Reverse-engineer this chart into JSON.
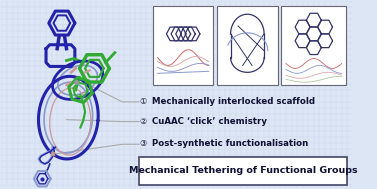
{
  "bg_color": "#dde6f5",
  "grid_color": "#c5d2e8",
  "title_box_text": "Mechanical Tethering of Functional Groups",
  "items": [
    {
      "num": "①",
      "text": "Mechanically interlocked scaffold"
    },
    {
      "num": "②",
      "text": "CuAAC ‘click’ chemistry"
    },
    {
      "num": "③",
      "text": "Post-synthetic functionalisation"
    }
  ],
  "title_fontsize": 6.8,
  "item_fontsize": 6.2,
  "num_fontsize": 5.8,
  "text_color": "#111133",
  "box_edge_color": "#444466",
  "box_bg": "#ffffff",
  "thumb_bg": "#ffffff",
  "thumbnail_edge": "#666677",
  "blue": "#2222aa",
  "green": "#33aa33",
  "pink": "#cc9999",
  "lightblue": "#8899cc",
  "darkblue": "#333399",
  "gray": "#999999"
}
